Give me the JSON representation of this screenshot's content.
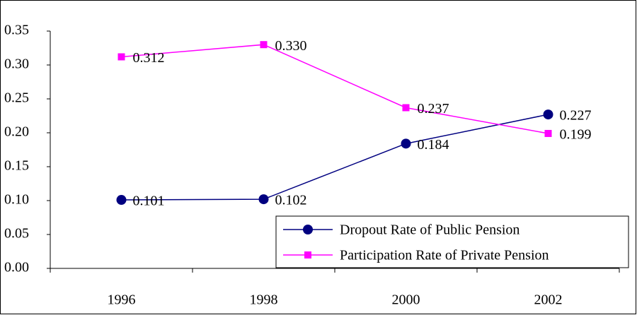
{
  "chart_data": {
    "type": "line",
    "categories": [
      "1996",
      "1998",
      "2000",
      "2002"
    ],
    "series": [
      {
        "name": "Dropout Rate of Public Pension",
        "color": "#000080",
        "marker": "circle",
        "values": [
          0.101,
          0.102,
          0.184,
          0.227
        ],
        "value_labels": [
          "0.101",
          "0.102",
          "0.184",
          "0.227"
        ]
      },
      {
        "name": "Participation Rate of Private Pension",
        "color": "#ff00ff",
        "marker": "square",
        "values": [
          0.312,
          0.33,
          0.237,
          0.199
        ],
        "value_labels": [
          "0.312",
          "0.330",
          "0.237",
          "0.199"
        ]
      }
    ],
    "ylim": [
      0,
      0.35
    ],
    "yticks": [
      {
        "value": 0,
        "label": "0.00"
      },
      0.05,
      {
        "value": 0.1,
        "label": "0.10"
      },
      0.15,
      {
        "value": 0.2,
        "label": "0.20"
      },
      0.25,
      {
        "value": 0.3,
        "label": "0.30"
      },
      0.35
    ],
    "grid": false,
    "legend": "lower-right"
  }
}
